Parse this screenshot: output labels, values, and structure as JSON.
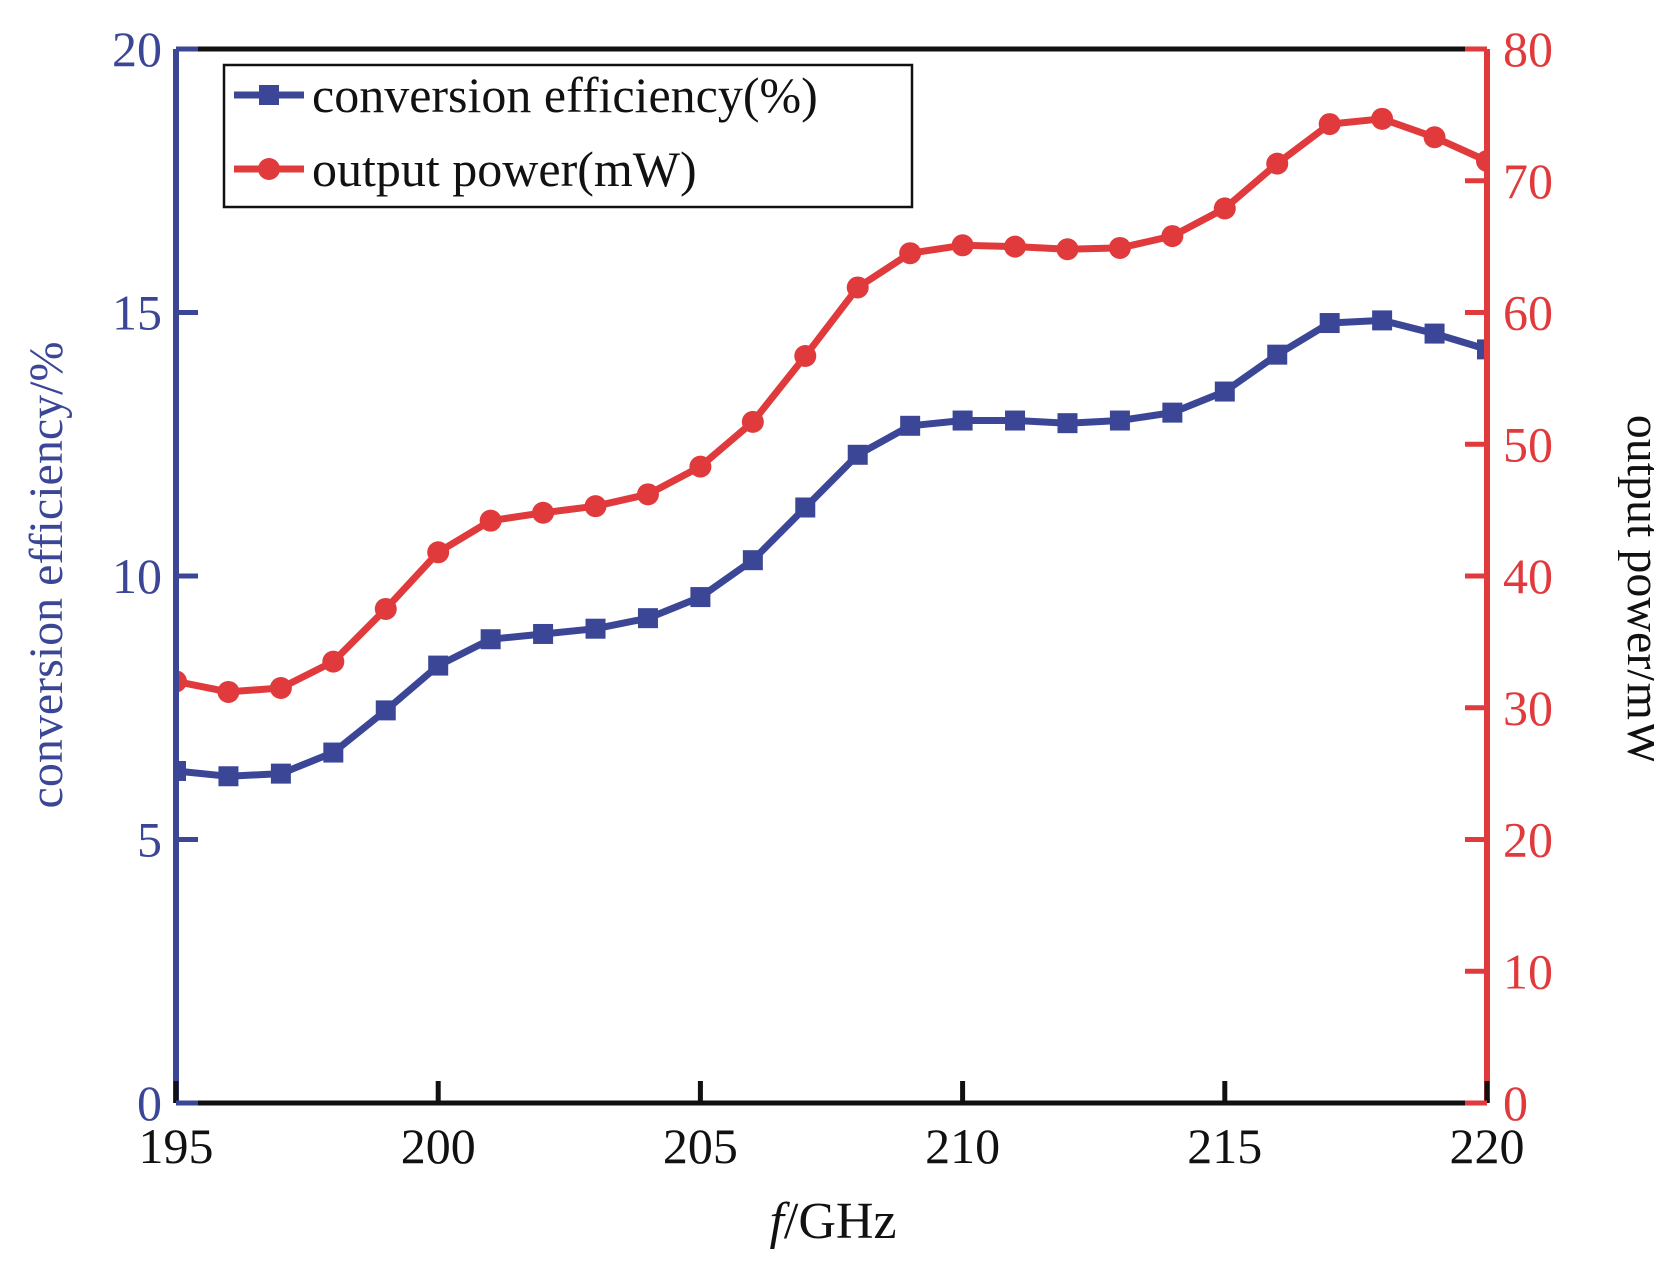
{
  "chart_data": {
    "type": "line",
    "xlabel_italic": "f",
    "xlabel_rest": "/GHz",
    "ylabel_left": "conversion efficiency/%",
    "ylabel_right": "output power/mW",
    "xlim": [
      195,
      220
    ],
    "ylim_left": [
      0,
      20
    ],
    "ylim_right": [
      0,
      80
    ],
    "x_ticks": [
      "195",
      "200",
      "205",
      "210",
      "215",
      "220"
    ],
    "y_left_ticks": [
      "0",
      "5",
      "10",
      "15",
      "20"
    ],
    "y_right_ticks": [
      "0",
      "10",
      "20",
      "30",
      "40",
      "50",
      "60",
      "70",
      "80"
    ],
    "legend_position": "top-left",
    "grid": false,
    "x": [
      195,
      196,
      197,
      198,
      199,
      200,
      201,
      202,
      203,
      204,
      205,
      206,
      207,
      208,
      209,
      210,
      211,
      212,
      213,
      214,
      215,
      216,
      217,
      218,
      219,
      220
    ],
    "series": [
      {
        "name": "conversion efficiency(%)",
        "axis": "left",
        "marker": "square",
        "color": "#3b4796",
        "values": [
          6.3,
          6.2,
          6.25,
          6.65,
          7.45,
          8.3,
          8.8,
          8.9,
          9.0,
          9.2,
          9.6,
          10.3,
          11.3,
          12.3,
          12.85,
          12.95,
          12.95,
          12.9,
          12.95,
          13.1,
          13.5,
          14.2,
          14.8,
          14.85,
          14.6,
          14.3
        ]
      },
      {
        "name": "output power(mW)",
        "axis": "right",
        "marker": "circle",
        "color": "#e03a3c",
        "values": [
          32.0,
          31.2,
          31.5,
          33.5,
          37.5,
          41.8,
          44.2,
          44.8,
          45.3,
          46.2,
          48.3,
          51.7,
          56.7,
          61.9,
          64.5,
          65.1,
          65.0,
          64.8,
          64.9,
          65.8,
          67.9,
          71.3,
          74.3,
          74.7,
          73.3,
          71.5
        ]
      }
    ]
  }
}
